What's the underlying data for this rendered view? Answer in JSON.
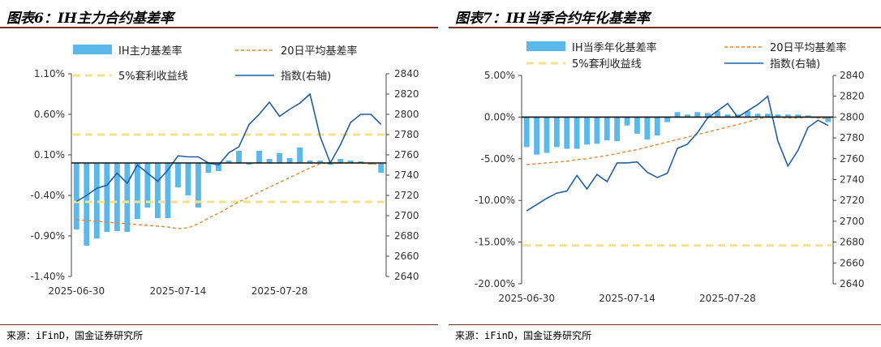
{
  "panels": [
    {
      "title": "图表6：IH主力合约基差率",
      "source": "来源：iFinD，国金证券研究所"
    },
    {
      "title": "图表7：IH当季合约年化基差率",
      "source": "来源：iFinD，国金证券研究所"
    }
  ],
  "chart_data": [
    {
      "type": "bar",
      "legend": [
        "IH主力基差率",
        "20日平均基差率",
        "5%套利收益线",
        "指数(右轴)"
      ],
      "x_tick_labels": [
        "2025-06-30",
        "2025-07-14",
        "2025-07-28"
      ],
      "y_left": {
        "ticks": [
          1.1,
          0.6,
          0.1,
          -0.4,
          -0.9,
          -1.4
        ],
        "tick_labels": [
          "1.10%",
          "0.60%",
          "0.10%",
          "-0.40%",
          "-0.90%",
          "-1.40%"
        ],
        "range": [
          -1.4,
          1.1
        ]
      },
      "y_right": {
        "ticks": [
          2840,
          2820,
          2800,
          2780,
          2760,
          2740,
          2720,
          2700,
          2680,
          2660,
          2640
        ],
        "range": [
          2640,
          2840
        ]
      },
      "x_axis_at": 0.0,
      "categories": [
        "2025-06-30",
        "07-01",
        "07-02",
        "07-03",
        "07-04",
        "07-07",
        "07-08",
        "07-09",
        "07-10",
        "07-11",
        "2025-07-14",
        "07-15",
        "07-16",
        "07-17",
        "07-18",
        "07-21",
        "07-22",
        "07-23",
        "07-24",
        "07-25",
        "2025-07-28",
        "07-29",
        "07-30",
        "07-31",
        "08-01",
        "08-04",
        "08-05",
        "08-06",
        "08-07",
        "08-08",
        "08-11"
      ],
      "series": [
        {
          "name": "IH主力基差率",
          "kind": "bar",
          "color": "#5bb8ea",
          "values": [
            -0.82,
            -1.02,
            -0.93,
            -0.85,
            -0.84,
            -0.85,
            -0.69,
            -0.55,
            -0.68,
            -0.68,
            -0.3,
            -0.4,
            -0.55,
            -0.12,
            -0.1,
            0.03,
            0.15,
            -0.02,
            0.15,
            0.05,
            0.12,
            0.06,
            0.19,
            0.03,
            0.03,
            -0.02,
            0.05,
            0.03,
            0.02,
            -0.02,
            -0.12
          ]
        },
        {
          "name": "20日平均基差率",
          "kind": "line",
          "color": "#e8872c",
          "dash": true,
          "values": [
            -0.7,
            -0.71,
            -0.72,
            -0.73,
            -0.74,
            -0.75,
            -0.76,
            -0.77,
            -0.78,
            -0.79,
            -0.81,
            -0.8,
            -0.75,
            -0.68,
            -0.62,
            -0.55,
            -0.48,
            -0.42,
            -0.36,
            -0.3,
            -0.24,
            -0.18,
            -0.12,
            -0.06,
            -0.01,
            0.01,
            0.0,
            0.0,
            0.0,
            -0.01,
            -0.02
          ]
        },
        {
          "name": "5%套利收益线",
          "kind": "line",
          "color": "#f7e08a",
          "dash": true,
          "values_constant": [
            0.35,
            -0.48
          ]
        },
        {
          "name": "指数(右轴)",
          "kind": "line",
          "axis": "right",
          "color": "#1f5fa8",
          "values": [
            2714,
            2720,
            2727,
            2730,
            2742,
            2732,
            2750,
            2742,
            2734,
            2745,
            2759,
            2758,
            2758,
            2752,
            2750,
            2762,
            2768,
            2790,
            2800,
            2812,
            2798,
            2805,
            2811,
            2820,
            2778,
            2752,
            2770,
            2792,
            2800,
            2800,
            2790
          ]
        }
      ]
    },
    {
      "type": "bar",
      "legend": [
        "IH当季年化基差率",
        "20日平均基差率",
        "5%套利收益线",
        "指数(右轴)"
      ],
      "x_tick_labels": [
        "2025-06-30",
        "2025-07-14",
        "2025-07-28"
      ],
      "y_left": {
        "ticks": [
          5,
          0,
          -5,
          -10,
          -15,
          -20
        ],
        "tick_labels": [
          "5.00%",
          "0.00%",
          "-5.00%",
          "-10.00%",
          "-15.00%",
          "-20.00%"
        ],
        "range": [
          -20,
          5
        ]
      },
      "y_right": {
        "ticks": [
          2840,
          2820,
          2800,
          2780,
          2760,
          2740,
          2720,
          2700,
          2680,
          2660,
          2640
        ],
        "range": [
          2640,
          2840
        ]
      },
      "x_axis_at": 0.0,
      "categories": [
        "2025-06-30",
        "07-01",
        "07-02",
        "07-03",
        "07-04",
        "07-07",
        "07-08",
        "07-09",
        "07-10",
        "07-11",
        "2025-07-14",
        "07-15",
        "07-16",
        "07-17",
        "07-18",
        "07-21",
        "07-22",
        "07-23",
        "07-24",
        "07-25",
        "2025-07-28",
        "07-29",
        "07-30",
        "07-31",
        "08-01",
        "08-04",
        "08-05",
        "08-06",
        "08-07",
        "08-08",
        "08-11"
      ],
      "series": [
        {
          "name": "IH当季年化基差率",
          "kind": "bar",
          "color": "#5bb8ea",
          "values": [
            -3.6,
            -4.5,
            -4.3,
            -3.6,
            -3.8,
            -3.8,
            -3.3,
            -3.2,
            -2.8,
            -2.9,
            -1.0,
            -2.0,
            -2.7,
            -2.2,
            -0.6,
            0.6,
            0.3,
            0.6,
            0.5,
            0.7,
            0.3,
            0.3,
            0.7,
            0.4,
            0.4,
            0.3,
            0.3,
            0.3,
            0.2,
            -0.1,
            -0.6
          ]
        },
        {
          "name": "20日平均基差率",
          "kind": "line",
          "color": "#e8872c",
          "dash": true,
          "values": [
            -5.7,
            -5.6,
            -5.5,
            -5.4,
            -5.3,
            -5.1,
            -5.0,
            -4.8,
            -4.6,
            -4.4,
            -4.1,
            -3.9,
            -3.6,
            -3.3,
            -3.0,
            -2.7,
            -2.4,
            -2.1,
            -1.8,
            -1.5,
            -1.2,
            -0.9,
            -0.6,
            -0.2,
            0.0,
            0.0,
            -0.1,
            -0.1,
            0.0,
            -0.1,
            -0.2
          ]
        },
        {
          "name": "5%套利收益线",
          "kind": "line",
          "color": "#f7e08a",
          "dash": true,
          "values_constant": [
            -15.4
          ]
        },
        {
          "name": "指数(右轴)",
          "kind": "line",
          "axis": "right",
          "color": "#1f5fa8",
          "values": [
            2710,
            2716,
            2722,
            2727,
            2729,
            2744,
            2731,
            2745,
            2738,
            2756,
            2756,
            2757,
            2747,
            2742,
            2746,
            2770,
            2774,
            2785,
            2799,
            2806,
            2813,
            2800,
            2806,
            2812,
            2820,
            2777,
            2753,
            2768,
            2790,
            2797,
            2792
          ]
        }
      ]
    }
  ]
}
